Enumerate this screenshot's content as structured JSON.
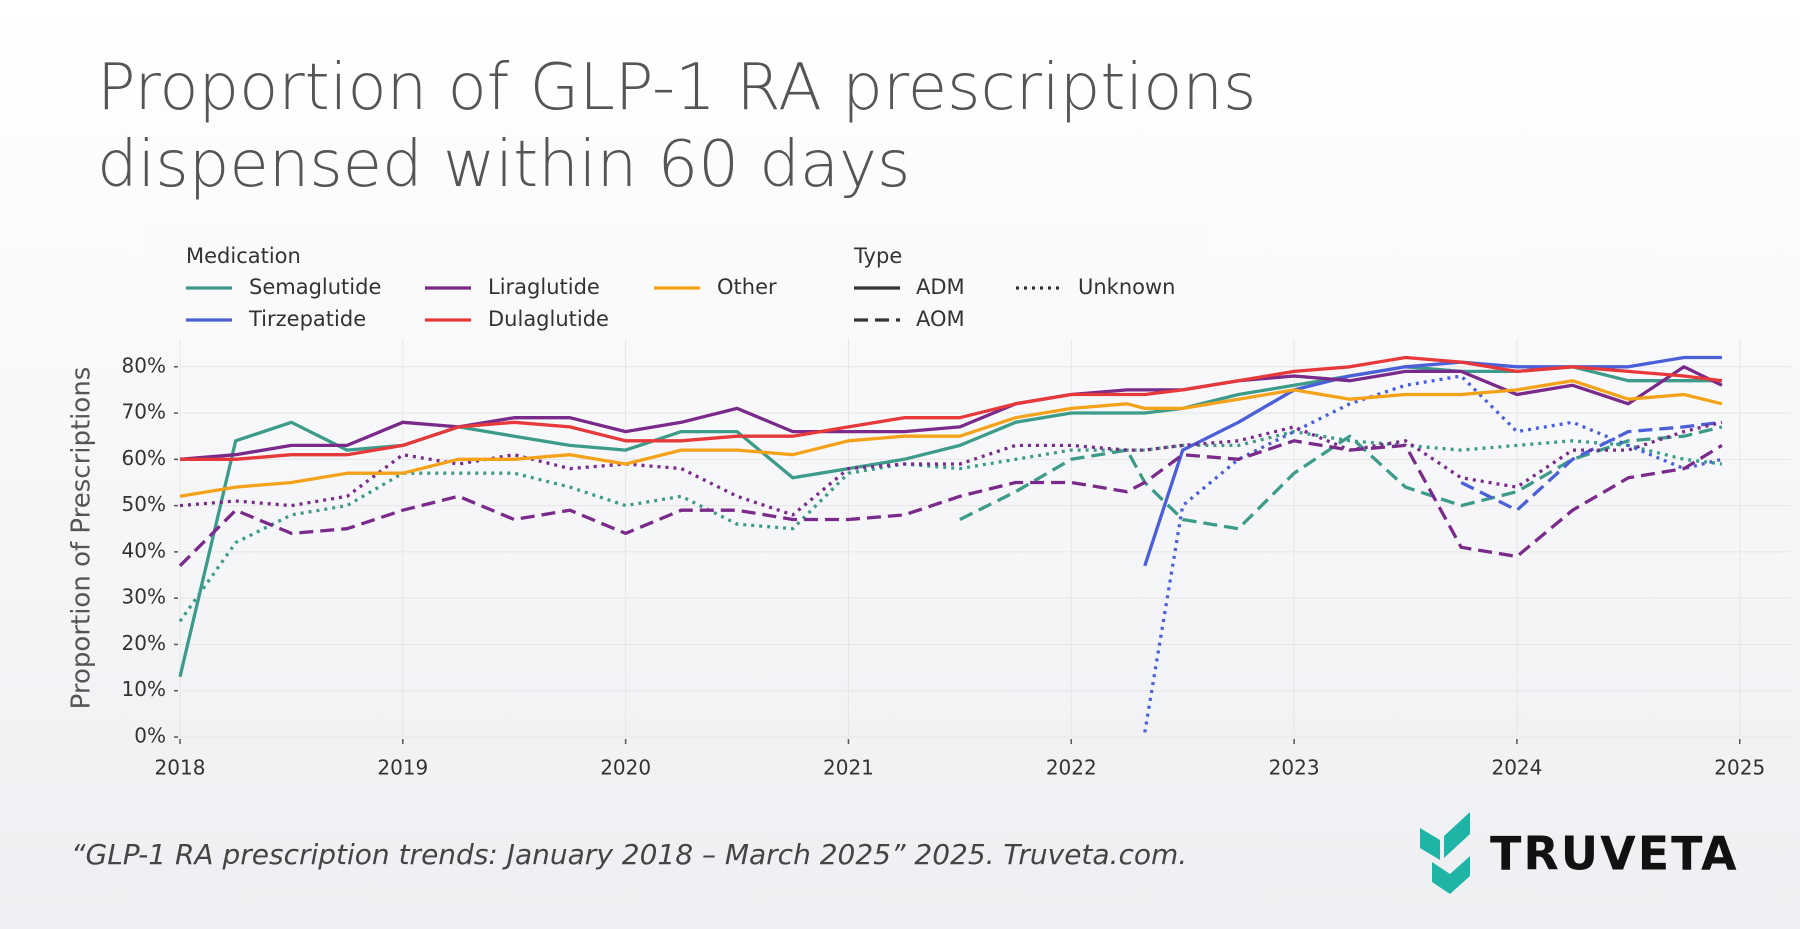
{
  "chart_data": {
    "type": "line",
    "title": "Proportion of GLP-1 RA prescriptions dispensed within 60 days",
    "ylabel": "Proportion of Prescriptions",
    "legend": {
      "medication_title": "Medication",
      "type_title": "Type"
    },
    "types": [
      {
        "name": "ADM",
        "dash": "solid"
      },
      {
        "name": "AOM",
        "dash": "dashed"
      },
      {
        "name": "Unknown",
        "dash": "dotted"
      }
    ],
    "x": [
      2018,
      2018.25,
      2018.5,
      2018.75,
      2019,
      2019.25,
      2019.5,
      2019.75,
      2020,
      2020.25,
      2020.5,
      2020.75,
      2021,
      2021.25,
      2021.5,
      2021.75,
      2022,
      2022.25,
      2022.33,
      2022.5,
      2022.75,
      2023,
      2023.25,
      2023.5,
      2023.75,
      2024,
      2024.25,
      2024.5,
      2024.75,
      2024.92
    ],
    "series": [
      {
        "name": "Semaglutide",
        "color": "#3d9b8a",
        "ADM": [
          13,
          64,
          68,
          62,
          63,
          67,
          65,
          63,
          62,
          66,
          66,
          56,
          58,
          60,
          63,
          68,
          70,
          70,
          70,
          71,
          74,
          76,
          78,
          80,
          79,
          79,
          80,
          77,
          77,
          77
        ],
        "AOM": [
          null,
          null,
          null,
          null,
          null,
          null,
          null,
          null,
          null,
          null,
          null,
          null,
          null,
          null,
          47,
          53,
          60,
          62,
          55,
          47,
          45,
          57,
          65,
          54,
          50,
          53,
          60,
          64,
          65,
          67
        ],
        "Unknown": [
          25,
          42,
          48,
          50,
          57,
          57,
          57,
          54,
          50,
          52,
          46,
          45,
          57,
          59,
          58,
          60,
          62,
          62,
          62,
          63,
          63,
          66,
          64,
          63,
          62,
          63,
          64,
          63,
          60,
          59
        ]
      },
      {
        "name": "Tirzepatide",
        "color": "#4a5fd8",
        "ADM": [
          null,
          null,
          null,
          null,
          null,
          null,
          null,
          null,
          null,
          null,
          null,
          null,
          null,
          null,
          null,
          null,
          null,
          null,
          37,
          62,
          68,
          75,
          78,
          80,
          81,
          80,
          80,
          80,
          82,
          82
        ],
        "AOM": [
          null,
          null,
          null,
          null,
          null,
          null,
          null,
          null,
          null,
          null,
          null,
          null,
          null,
          null,
          null,
          null,
          null,
          null,
          null,
          null,
          null,
          null,
          null,
          null,
          55,
          49,
          60,
          66,
          67,
          68
        ],
        "Unknown": [
          null,
          null,
          null,
          null,
          null,
          null,
          null,
          null,
          null,
          null,
          null,
          null,
          null,
          null,
          null,
          null,
          null,
          null,
          1,
          50,
          60,
          66,
          72,
          76,
          78,
          66,
          68,
          63,
          58,
          60
        ]
      },
      {
        "name": "Liraglutide",
        "color": "#7a2a8a",
        "ADM": [
          60,
          61,
          63,
          63,
          68,
          67,
          69,
          69,
          66,
          68,
          71,
          66,
          66,
          66,
          67,
          72,
          74,
          75,
          75,
          75,
          77,
          78,
          77,
          79,
          79,
          74,
          76,
          72,
          80,
          76
        ],
        "AOM": [
          37,
          49,
          44,
          45,
          49,
          52,
          47,
          49,
          44,
          49,
          49,
          47,
          47,
          48,
          52,
          55,
          55,
          53,
          55,
          61,
          60,
          64,
          62,
          63,
          41,
          39,
          49,
          56,
          58,
          63
        ],
        "Unknown": [
          50,
          51,
          50,
          52,
          61,
          59,
          61,
          58,
          59,
          58,
          52,
          48,
          58,
          59,
          59,
          63,
          63,
          62,
          62,
          63,
          64,
          67,
          62,
          64,
          56,
          54,
          62,
          62,
          66,
          68
        ]
      },
      {
        "name": "Dulaglutide",
        "color": "#e8393a",
        "ADM": [
          60,
          60,
          61,
          61,
          63,
          67,
          68,
          67,
          64,
          64,
          65,
          65,
          67,
          69,
          69,
          72,
          74,
          74,
          74,
          75,
          77,
          79,
          80,
          82,
          81,
          79,
          80,
          79,
          78,
          77
        ]
      },
      {
        "name": "Other",
        "color": "#f5a21b",
        "ADM": [
          52,
          54,
          55,
          57,
          57,
          60,
          60,
          61,
          59,
          62,
          62,
          61,
          64,
          65,
          65,
          69,
          71,
          72,
          71,
          71,
          73,
          75,
          73,
          74,
          74,
          75,
          77,
          73,
          74,
          72
        ]
      }
    ],
    "xlim": [
      2018,
      2025.23
    ],
    "xticks": [
      2018,
      2019,
      2020,
      2021,
      2022,
      2023,
      2024,
      2025
    ],
    "ylim": [
      0,
      86
    ],
    "yticks": [
      {
        "value": 0,
        "label": "0%"
      },
      {
        "value": 10,
        "label": "10%"
      },
      {
        "value": 20,
        "label": "20%"
      },
      {
        "value": 30,
        "label": "30%"
      },
      {
        "value": 40,
        "label": "40%"
      },
      {
        "value": 50,
        "label": "50%"
      },
      {
        "value": 60,
        "label": "60%"
      },
      {
        "value": 70,
        "label": "70%"
      },
      {
        "value": 80,
        "label": "80%"
      }
    ],
    "grid": true
  },
  "footer": {
    "citation": "“GLP-1 RA prescription trends:  January 2018 – March 2025” 2025. Truveta.com.",
    "logo": "TRUVETA"
  }
}
